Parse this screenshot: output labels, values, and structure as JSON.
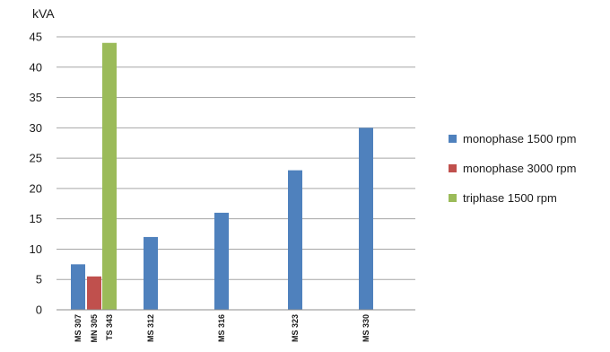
{
  "chart_data": {
    "type": "bar",
    "unit_label": "kVA",
    "ylim": [
      0,
      45
    ],
    "yticks": [
      0,
      5,
      10,
      15,
      20,
      25,
      30,
      35,
      40,
      45
    ],
    "grid": true,
    "legend_position": "right",
    "series": [
      {
        "name": "monophase 1500 rpm",
        "color": "#4f81bd"
      },
      {
        "name": "monophase 3000 rpm",
        "color": "#c0504d"
      },
      {
        "name": "triphase 1500 rpm",
        "color": "#9bbb59"
      }
    ],
    "bars": [
      {
        "label": "MS 307",
        "series": 0,
        "value": 7.5
      },
      {
        "label": "MN 305",
        "series": 1,
        "value": 5.5
      },
      {
        "label": "TS 343",
        "series": 2,
        "value": 44
      },
      {
        "label": "MS 312",
        "series": 0,
        "value": 12
      },
      {
        "label": "MS 316",
        "series": 0,
        "value": 16
      },
      {
        "label": "MS 323",
        "series": 0,
        "value": 23
      },
      {
        "label": "MS 330",
        "series": 0,
        "value": 30
      }
    ]
  }
}
